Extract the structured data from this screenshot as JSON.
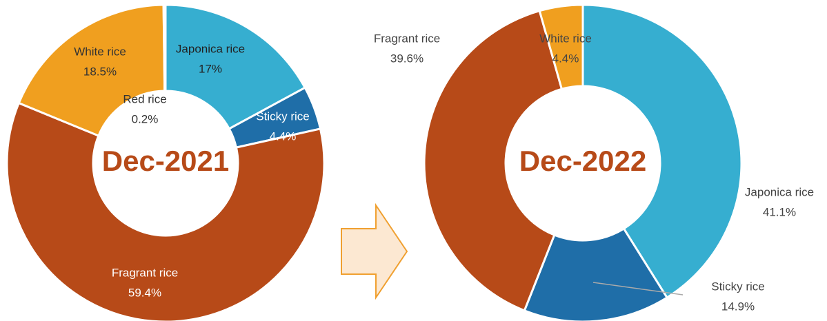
{
  "chart_data": [
    {
      "type": "donut",
      "center_label": "Dec-2021",
      "categories": [
        "Japonica rice",
        "Sticky rice",
        "Fragrant rice",
        "White rice",
        "Red rice"
      ],
      "values": [
        17,
        4.4,
        59.4,
        18.5,
        0.2
      ],
      "value_labels": [
        "17%",
        "4.4%",
        "59.4%",
        "18.5%",
        "0.2%"
      ],
      "colors": [
        "#36AED0",
        "#1F6EA8",
        "#B74A18",
        "#F09F1F",
        "#F2F2F2"
      ]
    },
    {
      "type": "donut",
      "center_label": "Dec-2022",
      "categories": [
        "Japonica rice",
        "Sticky rice",
        "Fragrant rice",
        "White rice"
      ],
      "values": [
        41.1,
        14.9,
        39.6,
        4.4
      ],
      "value_labels": [
        "41.1%",
        "14.9%",
        "39.6%",
        "4.4%"
      ],
      "colors": [
        "#36AED0",
        "#1F6EA8",
        "#B74A18",
        "#F09F1F"
      ]
    }
  ]
}
